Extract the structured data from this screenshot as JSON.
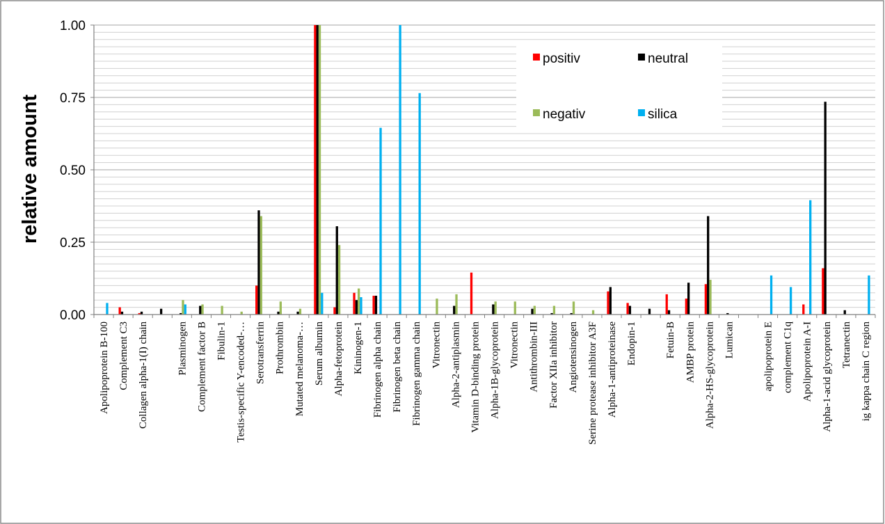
{
  "chart_data": {
    "type": "bar",
    "title": "",
    "xlabel": "",
    "ylabel": "relative amount",
    "ylim": [
      0,
      1
    ],
    "yticks": [
      "0.00",
      "0.25",
      "0.50",
      "0.75",
      "1.00"
    ],
    "legend_placement": "top-right",
    "grid": true,
    "categories": [
      "Apolipoprotein B-100",
      "Complement C3",
      "Collagen alpha-1(I) chain",
      "",
      "Plasminogen",
      "Complement factor B",
      "Fibulin-1",
      "Testis-specific Y-encoded-…",
      "Serotransferrin",
      "Prothrombin",
      "Mutated melanoma-…",
      "Serum albumin",
      "Alpha-fetoprotein",
      "Kininogen-1",
      "Fibrinogen alpha chain",
      "Fibrinogen beta chain",
      "Fibrinogen gamma chain",
      "Vitronectin",
      "Alpha-2-antiplasmin",
      "Vitamin D-binding protein",
      "Alpha-1B-glycoprotein",
      "Vitronectin",
      "Antithrombin-III",
      "Factor XIIa inhibitor",
      "Angiotensinogen",
      "Serine protease inhibitor A3F",
      "Alpha-1-antiproteinase",
      "Endopin-1",
      "",
      "Fetuin-B",
      "AMBP protein",
      "Alpha-2-HS-glycoprotein",
      "Lumican",
      "",
      "apolipoprotein E",
      "complement C1q",
      "Apolipoprotein A-I",
      "Alpha-1-acid glycoprotein",
      "Tetranectin",
      "ig kappa chain C region"
    ],
    "series": [
      {
        "name": "positiv",
        "color": "#ff0000",
        "values": [
          0,
          0.025,
          0.005,
          0,
          0,
          0,
          0,
          0,
          0.1,
          0,
          0,
          1.0,
          0.025,
          0.075,
          0.065,
          0,
          0,
          0,
          0,
          0.145,
          0,
          0,
          0,
          0,
          0,
          0,
          0.08,
          0.04,
          0,
          0.07,
          0.055,
          0.105,
          0,
          0,
          0,
          0,
          0.035,
          0.16,
          0,
          0
        ]
      },
      {
        "name": "neutral",
        "color": "#000000",
        "values": [
          0,
          0.01,
          0.01,
          0.02,
          0.005,
          0.03,
          0,
          0,
          0.36,
          0.01,
          0.01,
          1.0,
          0.305,
          0.05,
          0.065,
          0,
          0,
          0,
          0.03,
          0,
          0.035,
          0,
          0.02,
          0.005,
          0.005,
          0,
          0.095,
          0.03,
          0.02,
          0.015,
          0.11,
          0.34,
          0.005,
          0,
          0,
          0,
          0,
          0.735,
          0.015,
          0
        ]
      },
      {
        "name": "negativ",
        "color": "#9bbb59",
        "values": [
          0,
          0,
          0,
          0,
          0.05,
          0.035,
          0.03,
          0.01,
          0.34,
          0.045,
          0.02,
          1.0,
          0.24,
          0.09,
          0,
          0,
          0,
          0.055,
          0.07,
          0,
          0.045,
          0.045,
          0.03,
          0.03,
          0.045,
          0.015,
          0,
          0,
          0,
          0,
          0,
          0.12,
          0,
          0,
          0,
          0,
          0,
          0,
          0,
          0
        ]
      },
      {
        "name": "silica",
        "color": "#00b0f0",
        "values": [
          0.04,
          0,
          0,
          0,
          0.035,
          0,
          0,
          0,
          0,
          0,
          0,
          0.075,
          0,
          0.06,
          0.645,
          1.0,
          0.765,
          0,
          0,
          0,
          0,
          0,
          0,
          0,
          0,
          0,
          0,
          0,
          0,
          0,
          0,
          0,
          0,
          0,
          0.135,
          0.095,
          0.395,
          0,
          0,
          0.135
        ]
      }
    ]
  }
}
